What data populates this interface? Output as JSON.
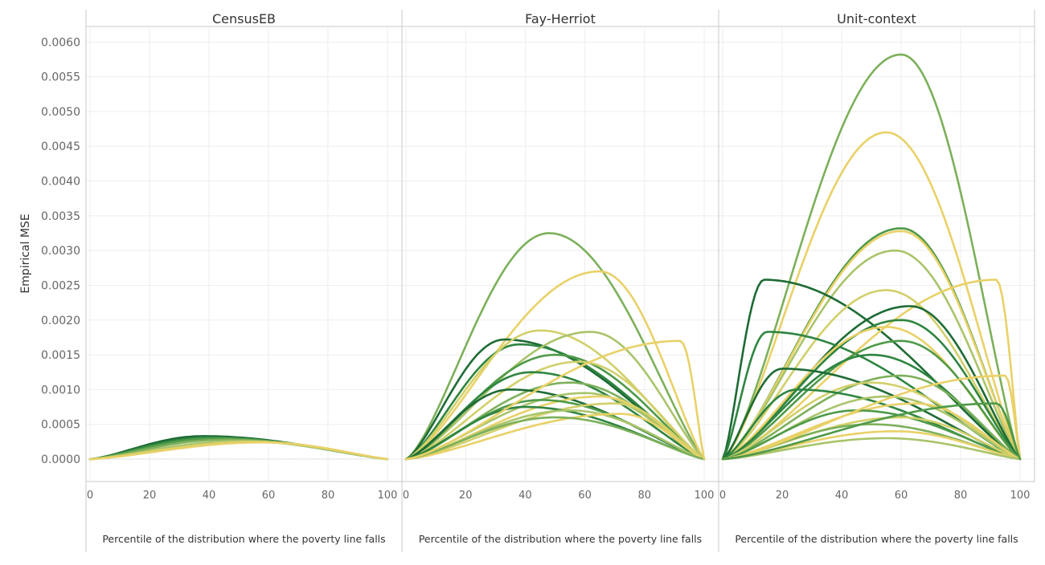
{
  "chart_data": {
    "type": "line",
    "ylabel": "Empirical MSE",
    "ylim": [
      -0.0003,
      0.0062
    ],
    "y_ticks": [
      "0.0060",
      "0.0055",
      "0.0050",
      "0.0045",
      "0.0040",
      "0.0035",
      "0.0030",
      "0.0025",
      "0.0020",
      "0.0015",
      "0.0010",
      "0.0005",
      "0.0000"
    ],
    "grid": true,
    "palette": [
      "#1d6b34",
      "#2e8540",
      "#4e9a48",
      "#7cb05a",
      "#a9c46a",
      "#d2d06a",
      "#e9d168"
    ],
    "panels": [
      {
        "title": "CensusEB",
        "xlabel": "Percentile of the distribution where the poverty line falls",
        "xlim": [
          0,
          100
        ],
        "x_ticks": [
          "0",
          "20",
          "40",
          "60",
          "80",
          "100"
        ],
        "series": [
          {
            "color": "#1d6b34",
            "peak_x": 38,
            "peak": 0.00033
          },
          {
            "color": "#2e8540",
            "peak_x": 40,
            "peak": 0.00031
          },
          {
            "color": "#4e9a48",
            "peak_x": 42,
            "peak": 0.0003
          },
          {
            "color": "#7cb05a",
            "peak_x": 45,
            "peak": 0.00028
          },
          {
            "color": "#a9c46a",
            "peak_x": 50,
            "peak": 0.00026
          },
          {
            "color": "#d2d06a",
            "peak_x": 55,
            "peak": 0.00025
          },
          {
            "color": "#e9d168",
            "peak_x": 58,
            "peak": 0.00024
          }
        ]
      },
      {
        "title": "Fay-Herriot",
        "xlabel": "Percentile of the distribution where the poverty line falls",
        "xlim": [
          0,
          100
        ],
        "x_ticks": [
          "0",
          "20",
          "40",
          "60",
          "80",
          "100"
        ],
        "series": [
          {
            "color": "#7cb05a",
            "peak_x": 48,
            "peak": 0.00325
          },
          {
            "color": "#e9d168",
            "peak_x": 65,
            "peak": 0.0027
          },
          {
            "color": "#1d6b34",
            "peak_x": 33,
            "peak": 0.00172
          },
          {
            "color": "#2e8540",
            "peak_x": 38,
            "peak": 0.00165
          },
          {
            "color": "#d2d06a",
            "peak_x": 45,
            "peak": 0.00185
          },
          {
            "color": "#a9c46a",
            "peak_x": 62,
            "peak": 0.00183
          },
          {
            "color": "#4e9a48",
            "peak_x": 50,
            "peak": 0.0015
          },
          {
            "color": "#d2d06a",
            "peak_x": 58,
            "peak": 0.0014
          },
          {
            "color": "#2e8540",
            "peak_x": 42,
            "peak": 0.00125
          },
          {
            "color": "#7cb05a",
            "peak_x": 55,
            "peak": 0.0011
          },
          {
            "color": "#1d6b34",
            "peak_x": 35,
            "peak": 0.001
          },
          {
            "color": "#a9c46a",
            "peak_x": 60,
            "peak": 0.00095
          },
          {
            "color": "#e9d168",
            "peak_x": 65,
            "peak": 0.0009
          },
          {
            "color": "#4e9a48",
            "peak_x": 45,
            "peak": 0.00085
          },
          {
            "color": "#d2d06a",
            "peak_x": 70,
            "peak": 0.0008
          },
          {
            "color": "#2e8540",
            "peak_x": 40,
            "peak": 0.00075
          },
          {
            "color": "#a9c46a",
            "peak_x": 55,
            "peak": 0.0007
          },
          {
            "color": "#e9d168",
            "peak_x": 72,
            "peak": 0.00065
          },
          {
            "color": "#7cb05a",
            "peak_x": 50,
            "peak": 0.0006
          },
          {
            "color": "#e9d168",
            "peak_x": 92,
            "peak": 0.0017
          }
        ]
      },
      {
        "title": "Unit-context",
        "xlabel": "Percentile of the distribution where the poverty line falls",
        "xlim": [
          0,
          100
        ],
        "x_ticks": [
          "0",
          "20",
          "40",
          "60",
          "80",
          "100"
        ],
        "series": [
          {
            "color": "#7cb05a",
            "peak_x": 60,
            "peak": 0.00582
          },
          {
            "color": "#e9d168",
            "peak_x": 55,
            "peak": 0.0047
          },
          {
            "color": "#4e9a48",
            "peak_x": 60,
            "peak": 0.00332
          },
          {
            "color": "#e9d168",
            "peak_x": 60,
            "peak": 0.00328
          },
          {
            "color": "#a9c46a",
            "peak_x": 58,
            "peak": 0.003
          },
          {
            "color": "#1d6b34",
            "peak_x": 14,
            "peak": 0.00258
          },
          {
            "color": "#e9d168",
            "peak_x": 92,
            "peak": 0.00258
          },
          {
            "color": "#d2d06a",
            "peak_x": 55,
            "peak": 0.00243
          },
          {
            "color": "#1d6b34",
            "peak_x": 63,
            "peak": 0.0022
          },
          {
            "color": "#2e8540",
            "peak_x": 60,
            "peak": 0.002
          },
          {
            "color": "#2e8540",
            "peak_x": 15,
            "peak": 0.00183
          },
          {
            "color": "#e9d168",
            "peak_x": 55,
            "peak": 0.0019
          },
          {
            "color": "#4e9a48",
            "peak_x": 60,
            "peak": 0.0017
          },
          {
            "color": "#2e8540",
            "peak_x": 50,
            "peak": 0.0015
          },
          {
            "color": "#1d6b34",
            "peak_x": 20,
            "peak": 0.0013
          },
          {
            "color": "#7cb05a",
            "peak_x": 60,
            "peak": 0.0012
          },
          {
            "color": "#d2d06a",
            "peak_x": 50,
            "peak": 0.0011
          },
          {
            "color": "#2e8540",
            "peak_x": 25,
            "peak": 0.001
          },
          {
            "color": "#a9c46a",
            "peak_x": 55,
            "peak": 0.0009
          },
          {
            "color": "#e9d168",
            "peak_x": 65,
            "peak": 0.0008
          },
          {
            "color": "#4e9a48",
            "peak_x": 45,
            "peak": 0.0007
          },
          {
            "color": "#d2d06a",
            "peak_x": 60,
            "peak": 0.0006
          },
          {
            "color": "#7cb05a",
            "peak_x": 50,
            "peak": 0.0005
          },
          {
            "color": "#e9d168",
            "peak_x": 58,
            "peak": 0.0004
          },
          {
            "color": "#a9c46a",
            "peak_x": 55,
            "peak": 0.0003
          },
          {
            "color": "#e9d168",
            "peak_x": 95,
            "peak": 0.0012
          },
          {
            "color": "#4e9a48",
            "peak_x": 92,
            "peak": 0.0008
          }
        ]
      }
    ]
  }
}
